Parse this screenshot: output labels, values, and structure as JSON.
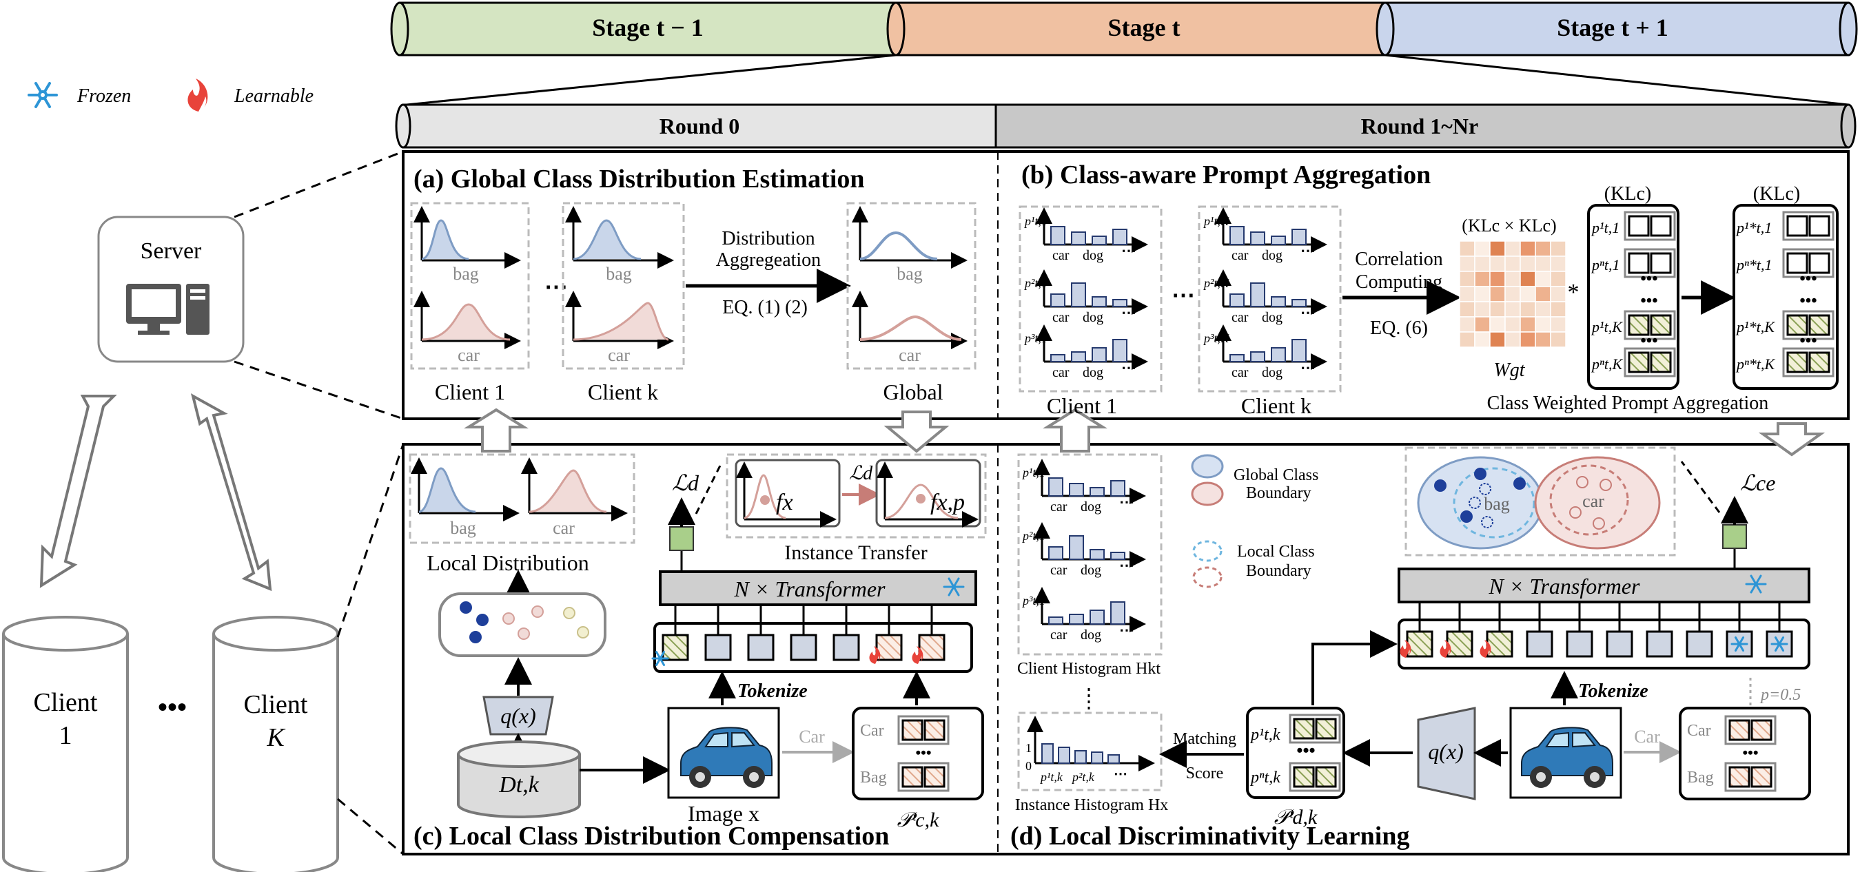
{
  "legend": {
    "frozen": "Frozen",
    "learnable": "Learnable"
  },
  "stages": {
    "prev": "Stage t − 1",
    "curr": "Stage t",
    "next": "Stage t + 1"
  },
  "rounds": {
    "r0": "Round 0",
    "r1": "Round 1~Nr"
  },
  "server": {
    "label": "Server"
  },
  "clients": {
    "c1_a": "Client",
    "c1_b": "1",
    "dots": "•••",
    "cK_a": "Client",
    "cK_b": "K"
  },
  "panel_a": {
    "title": "(a) Global Class Distribution Estimation",
    "bag": "bag",
    "car": "car",
    "client1": "Client 1",
    "clientk": "Client k",
    "global": "Global",
    "agg1": "Distribution",
    "agg2": "Aggregeation",
    "eq": "EQ. (1) (2)"
  },
  "panel_b": {
    "title": "(b) Class-aware Prompt Aggregation",
    "car": "car",
    "dog": "dog",
    "p11": "p¹t,1",
    "p21": "p²t,1",
    "p31": "p³t,1",
    "p1K": "p¹t,K",
    "p2K": "p²t,K",
    "p3K": "p³t,K",
    "client1": "Client 1",
    "clientk": "Client k",
    "corr1": "Correlation",
    "corr2": "Computing",
    "eq": "EQ. (6)",
    "matrix_label": "(KLc × KLc)",
    "wg": "Wgt",
    "klc": "(KLc)",
    "star": "*",
    "left_rows": [
      "p¹t,1",
      "pⁿt,1",
      "p¹t,K",
      "pⁿt,K"
    ],
    "right_rows": [
      "p¹*t,1",
      "pⁿ*t,1",
      "p¹*t,K",
      "pⁿ*t,K"
    ],
    "caption": "Class Weighted Prompt Aggregation"
  },
  "panel_c": {
    "title": "(c) Local Class Distribution Compensation",
    "bag": "bag",
    "car": "car",
    "local_dist": "Local Distribution",
    "ld": "ℒd",
    "fx": "fx",
    "fxp": "fx,p",
    "instance_transfer": "Instance Transfer",
    "transformer": "N × Transformer",
    "qx": "q(x)",
    "dtk": "Dt,k",
    "tokenize": "Tokenize",
    "image": "Image x",
    "car_arrow": "Car",
    "prompt_car": "Car",
    "prompt_bag": "Bag",
    "pck": "𝒫ᵗc,k",
    "dots": "•••"
  },
  "panel_d": {
    "title": "(d) Local Discriminativity Learning",
    "car": "car",
    "dog": "dog",
    "p11": "p¹t,1",
    "p21": "p²t,1",
    "p31": "p³t,1",
    "client_hist": "Client Histogram Hkt",
    "instance_hist": "Instance Histogram Hx",
    "hist_p1": "p¹t,k",
    "hist_p2": "p²t,k",
    "hist_one": "1",
    "hist_zero": "0",
    "matching1": "Matching",
    "matching2": "Score",
    "p1tk": "p¹t,k",
    "pntk": "pⁿt,k",
    "pdk": "𝒫ᵗd,k",
    "global_b1": "Global Class",
    "global_b2": "Boundary",
    "local_b1": "Local Class",
    "local_b2": "Boundary",
    "lce": "ℒce",
    "bag": "bag",
    "transformer": "N × Transformer",
    "qx": "q(x)",
    "tokenize": "Tokenize",
    "p05": "p=0.5",
    "car_arrow": "Car",
    "prompt_car": "Car",
    "prompt_bag": "Bag"
  },
  "colors": {
    "green_stage": "#d5e5c2",
    "orange_stage": "#f0c1a2",
    "blue_stage": "#c9d5ec",
    "curve_blue": "#7e9cc4",
    "curve_red": "#d4a09a",
    "bar_fill": "#c9d3e6",
    "bar_stroke": "#263a6e",
    "frozen": "#2d95d6",
    "learnable": "#e8433a"
  }
}
